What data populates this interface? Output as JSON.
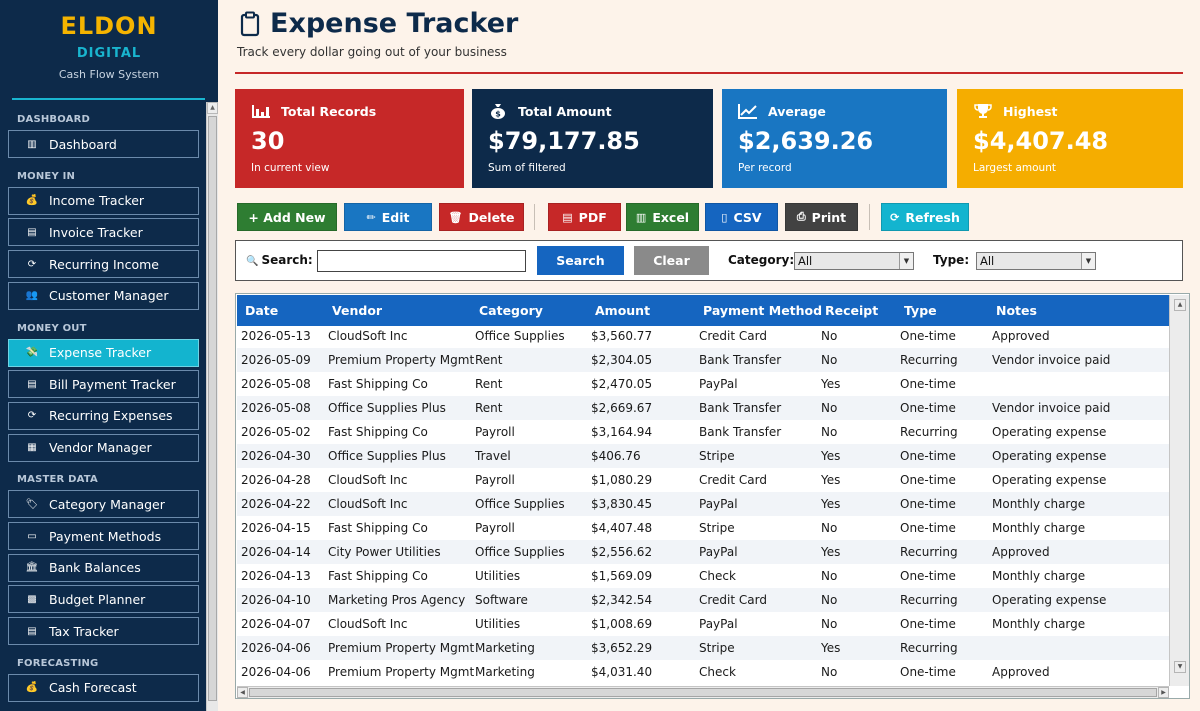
{
  "brand": {
    "title": "ELDON",
    "subtitle": "DIGITAL",
    "tagline": "Cash Flow System"
  },
  "sidebar": {
    "sections": [
      {
        "label": "DASHBOARD",
        "items": [
          {
            "label": "Dashboard",
            "icon": "bar-chart-icon"
          }
        ]
      },
      {
        "label": "MONEY IN",
        "items": [
          {
            "label": "Income Tracker",
            "icon": "money-bag-icon"
          },
          {
            "label": "Invoice Tracker",
            "icon": "document-icon"
          },
          {
            "label": "Recurring Income",
            "icon": "refresh-icon"
          },
          {
            "label": "Customer Manager",
            "icon": "users-icon"
          }
        ]
      },
      {
        "label": "MONEY OUT",
        "items": [
          {
            "label": "Expense Tracker",
            "icon": "money-out-icon",
            "active": true
          },
          {
            "label": "Bill Payment Tracker",
            "icon": "document-icon"
          },
          {
            "label": "Recurring Expenses",
            "icon": "refresh-icon"
          },
          {
            "label": "Vendor Manager",
            "icon": "building-icon"
          }
        ]
      },
      {
        "label": "MASTER DATA",
        "items": [
          {
            "label": "Category Manager",
            "icon": "tag-icon"
          },
          {
            "label": "Payment Methods",
            "icon": "credit-card-icon"
          },
          {
            "label": "Bank Balances",
            "icon": "bank-icon"
          },
          {
            "label": "Budget Planner",
            "icon": "calculator-icon"
          },
          {
            "label": "Tax Tracker",
            "icon": "receipt-icon"
          }
        ]
      },
      {
        "label": "FORECASTING",
        "items": [
          {
            "label": "Cash Forecast",
            "icon": "money-bag-icon"
          }
        ]
      }
    ]
  },
  "header": {
    "title": "Expense Tracker",
    "subtitle": "Track every dollar going out of your business"
  },
  "cards": [
    {
      "label": "Total Records",
      "value": "30",
      "note": "In current view",
      "color": "#c62828",
      "icon": "bar-chart-icon"
    },
    {
      "label": "Total Amount",
      "value": "$79,177.85",
      "note": "Sum of filtered",
      "color": "#0d2a4a",
      "icon": "money-bag-icon"
    },
    {
      "label": "Average",
      "value": "$2,639.26",
      "note": "Per record",
      "color": "#1976c2",
      "icon": "line-chart-icon"
    },
    {
      "label": "Highest",
      "value": "$4,407.48",
      "note": "Largest amount",
      "color": "#f5ad00",
      "icon": "trophy-icon"
    }
  ],
  "toolbar": {
    "add": "+ Add New",
    "edit": "Edit",
    "delete": "Delete",
    "pdf": "PDF",
    "excel": "Excel",
    "csv": "CSV",
    "print": "Print",
    "refresh": "Refresh"
  },
  "filter": {
    "search_label": "Search:",
    "search_value": "",
    "search_button": "Search",
    "clear_button": "Clear",
    "category_label": "Category:",
    "category_value": "All",
    "type_label": "Type:",
    "type_value": "All"
  },
  "table": {
    "columns": [
      "Date",
      "Vendor",
      "Category",
      "Amount",
      "Payment Method",
      "Receipt",
      "Type",
      "Notes"
    ],
    "rows": [
      [
        "2026-05-13",
        "CloudSoft Inc",
        "Office Supplies",
        "$3,560.77",
        "Credit Card",
        "No",
        "One-time",
        "Approved"
      ],
      [
        "2026-05-09",
        "Premium Property Mgmt",
        "Rent",
        "$2,304.05",
        "Bank Transfer",
        "No",
        "Recurring",
        "Vendor invoice paid"
      ],
      [
        "2026-05-08",
        "Fast Shipping Co",
        "Rent",
        "$2,470.05",
        "PayPal",
        "Yes",
        "One-time",
        ""
      ],
      [
        "2026-05-08",
        "Office Supplies Plus",
        "Rent",
        "$2,669.67",
        "Bank Transfer",
        "No",
        "One-time",
        "Vendor invoice paid"
      ],
      [
        "2026-05-02",
        "Fast Shipping Co",
        "Payroll",
        "$3,164.94",
        "Bank Transfer",
        "No",
        "Recurring",
        "Operating expense"
      ],
      [
        "2026-04-30",
        "Office Supplies Plus",
        "Travel",
        "$406.76",
        "Stripe",
        "Yes",
        "One-time",
        "Operating expense"
      ],
      [
        "2026-04-28",
        "CloudSoft Inc",
        "Payroll",
        "$1,080.29",
        "Credit Card",
        "Yes",
        "One-time",
        "Operating expense"
      ],
      [
        "2026-04-22",
        "CloudSoft Inc",
        "Office Supplies",
        "$3,830.45",
        "PayPal",
        "Yes",
        "One-time",
        "Monthly charge"
      ],
      [
        "2026-04-15",
        "Fast Shipping Co",
        "Payroll",
        "$4,407.48",
        "Stripe",
        "No",
        "One-time",
        "Monthly charge"
      ],
      [
        "2026-04-14",
        "City Power Utilities",
        "Office Supplies",
        "$2,556.62",
        "PayPal",
        "Yes",
        "Recurring",
        "Approved"
      ],
      [
        "2026-04-13",
        "Fast Shipping Co",
        "Utilities",
        "$1,569.09",
        "Check",
        "No",
        "One-time",
        "Monthly charge"
      ],
      [
        "2026-04-10",
        "Marketing Pros Agency",
        "Software",
        "$2,342.54",
        "Credit Card",
        "No",
        "Recurring",
        "Operating expense"
      ],
      [
        "2026-04-07",
        "CloudSoft Inc",
        "Utilities",
        "$1,008.69",
        "PayPal",
        "No",
        "One-time",
        "Monthly charge"
      ],
      [
        "2026-04-06",
        "Premium Property Mgmt",
        "Marketing",
        "$3,652.29",
        "Stripe",
        "Yes",
        "Recurring",
        ""
      ],
      [
        "2026-04-06",
        "Premium Property Mgmt",
        "Marketing",
        "$4,031.40",
        "Check",
        "No",
        "One-time",
        "Approved"
      ]
    ]
  },
  "colors": {
    "accent": "#13b4cf",
    "brand": "#0d2a4a",
    "header_blue": "#1565c0",
    "green": "#2e7d32",
    "red": "#c62828",
    "blue": "#1976c2",
    "gray": "#8a8a8a",
    "dark": "#424242"
  }
}
